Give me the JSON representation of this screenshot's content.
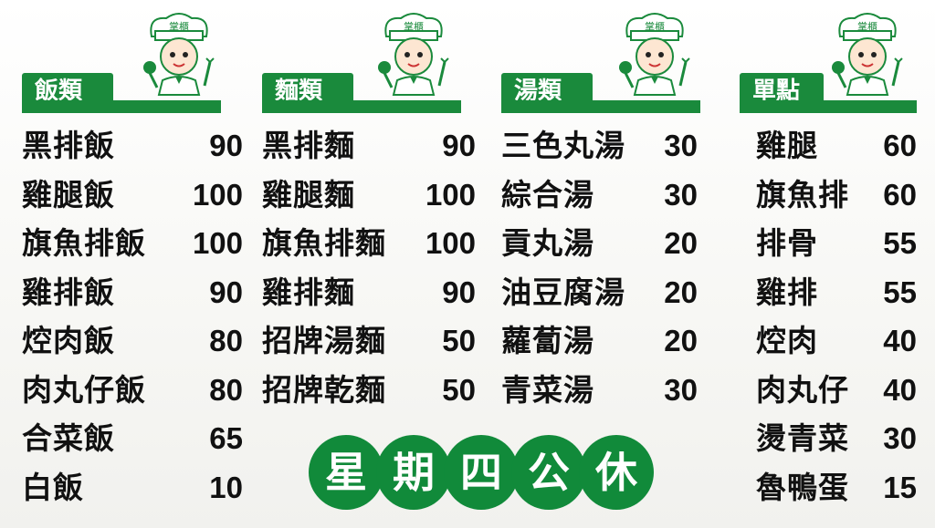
{
  "colors": {
    "green": "#1a8a3c",
    "text": "#111111"
  },
  "chef_hat_text": "掌櫃",
  "columns": [
    {
      "title": "飯類",
      "items": [
        {
          "name": "黑排飯",
          "price": "90"
        },
        {
          "name": "雞腿飯",
          "price": "100"
        },
        {
          "name": "旗魚排飯",
          "price": "100"
        },
        {
          "name": "雞排飯",
          "price": "90"
        },
        {
          "name": "焢肉飯",
          "price": "80"
        },
        {
          "name": "肉丸仔飯",
          "price": "80"
        },
        {
          "name": "合菜飯",
          "price": "65"
        },
        {
          "name": "白飯",
          "price": "10"
        }
      ]
    },
    {
      "title": "麵類",
      "items": [
        {
          "name": "黑排麵",
          "price": "90"
        },
        {
          "name": "雞腿麵",
          "price": "100"
        },
        {
          "name": "旗魚排麵",
          "price": "100"
        },
        {
          "name": "雞排麵",
          "price": "90"
        },
        {
          "name": "招牌湯麵",
          "price": "50"
        },
        {
          "name": "招牌乾麵",
          "price": "50"
        }
      ]
    },
    {
      "title": "湯類",
      "items": [
        {
          "name": "三色丸湯",
          "price": "30"
        },
        {
          "name": "綜合湯",
          "price": "30"
        },
        {
          "name": "貢丸湯",
          "price": "20"
        },
        {
          "name": "油豆腐湯",
          "price": "20"
        },
        {
          "name": "蘿蔔湯",
          "price": "20"
        },
        {
          "name": "青菜湯",
          "price": "30"
        }
      ]
    },
    {
      "title": "單點",
      "items": [
        {
          "name": "雞腿",
          "price": "60"
        },
        {
          "name": "旗魚排",
          "price": "60"
        },
        {
          "name": "排骨",
          "price": "55"
        },
        {
          "name": "雞排",
          "price": "55"
        },
        {
          "name": "焢肉",
          "price": "40"
        },
        {
          "name": "肉丸仔",
          "price": "40"
        },
        {
          "name": "燙青菜",
          "price": "30"
        },
        {
          "name": "魯鴨蛋",
          "price": "15"
        }
      ]
    }
  ],
  "closed_notice": [
    "星",
    "期",
    "四",
    "公",
    "休"
  ]
}
